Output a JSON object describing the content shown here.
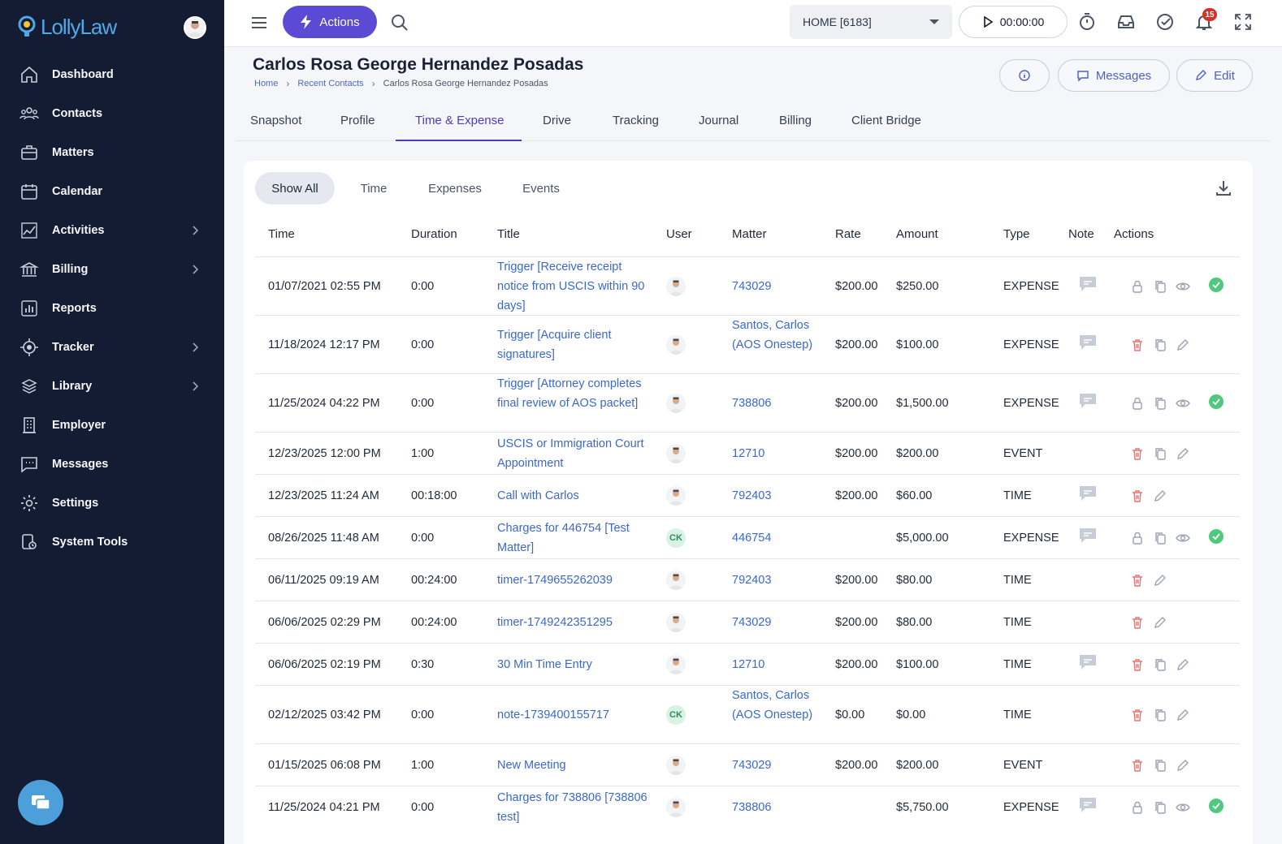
{
  "brand": {
    "name": "LollyLaw"
  },
  "sidebar": {
    "items": [
      {
        "label": "Dashboard",
        "icon": "home-icon",
        "has_submenu": false
      },
      {
        "label": "Contacts",
        "icon": "contacts-icon",
        "has_submenu": false
      },
      {
        "label": "Matters",
        "icon": "briefcase-icon",
        "has_submenu": false
      },
      {
        "label": "Calendar",
        "icon": "calendar-icon",
        "has_submenu": false
      },
      {
        "label": "Activities",
        "icon": "activity-chart-icon",
        "has_submenu": true
      },
      {
        "label": "Billing",
        "icon": "bank-icon",
        "has_submenu": true
      },
      {
        "label": "Reports",
        "icon": "bar-chart-icon",
        "has_submenu": false
      },
      {
        "label": "Tracker",
        "icon": "target-icon",
        "has_submenu": true
      },
      {
        "label": "Library",
        "icon": "library-icon",
        "has_submenu": true
      },
      {
        "label": "Employer",
        "icon": "building-icon",
        "has_submenu": false
      },
      {
        "label": "Messages",
        "icon": "message-icon",
        "has_submenu": false
      },
      {
        "label": "Settings",
        "icon": "gear-icon",
        "has_submenu": false
      },
      {
        "label": "System Tools",
        "icon": "system-tools-icon",
        "has_submenu": false
      }
    ]
  },
  "topbar": {
    "actions_label": "Actions",
    "workspace_select": "HOME [6183]",
    "timer": "00:00:00",
    "notification_count": "15"
  },
  "header": {
    "title": "Carlos Rosa George Hernandez Posadas",
    "breadcrumb": [
      "Home",
      "Recent Contacts",
      "Carlos Rosa George Hernandez Posadas"
    ],
    "messages_label": "Messages",
    "edit_label": "Edit"
  },
  "tabs": [
    "Snapshot",
    "Profile",
    "Time & Expense",
    "Drive",
    "Tracking",
    "Journal",
    "Billing",
    "Client Bridge"
  ],
  "active_tab": "Time & Expense",
  "filters": [
    "Show All",
    "Time",
    "Expenses",
    "Events"
  ],
  "active_filter": "Show All",
  "table": {
    "columns": [
      "Time",
      "Duration",
      "Title",
      "User",
      "Matter",
      "Rate",
      "Amount",
      "Type",
      "Note",
      "Actions"
    ],
    "rows": [
      {
        "time": "01/07/2021 02:55 PM",
        "duration": "0:00",
        "title": "Trigger [Receive receipt notice from USCIS within 90 days]",
        "user": "avatar",
        "matter": "743029",
        "rate": "$200.00",
        "amount": "$250.00",
        "type": "EXPENSE",
        "note": true,
        "actions": [
          "lock",
          "copy",
          "view"
        ],
        "approved": true
      },
      {
        "time": "11/18/2024 12:17 PM",
        "duration": "0:00",
        "title": "Trigger [Acquire client signatures]",
        "user": "avatar",
        "matter": "Santos, Carlos (AOS Onestep)",
        "rate": "$200.00",
        "amount": "$100.00",
        "type": "EXPENSE",
        "note": true,
        "actions": [
          "delete",
          "copy",
          "edit"
        ],
        "approved": false
      },
      {
        "time": "11/25/2024 04:22 PM",
        "duration": "0:00",
        "title": "Trigger [Attorney completes final review of AOS packet]",
        "user": "avatar",
        "matter": "738806",
        "rate": "$200.00",
        "amount": "$1,500.00",
        "type": "EXPENSE",
        "note": true,
        "actions": [
          "lock",
          "copy",
          "view"
        ],
        "approved": true
      },
      {
        "time": "12/23/2025 12:00 PM",
        "duration": "1:00",
        "title": "USCIS or Immigration Court Appointment",
        "user": "avatar",
        "matter": "12710",
        "rate": "$200.00",
        "amount": "$200.00",
        "type": "EVENT",
        "note": false,
        "actions": [
          "delete",
          "copy",
          "edit"
        ],
        "approved": false
      },
      {
        "time": "12/23/2025 11:24 AM",
        "duration": "00:18:00",
        "title": "Call with Carlos",
        "user": "avatar",
        "matter": "792403",
        "rate": "$200.00",
        "amount": "$60.00",
        "type": "TIME",
        "note": true,
        "actions": [
          "delete",
          "edit"
        ],
        "approved": false
      },
      {
        "time": "08/26/2025 11:48 AM",
        "duration": "0:00",
        "title": "Charges for 446754 [Test Matter]",
        "user": "CK",
        "matter": "446754",
        "rate": "",
        "amount": "$5,000.00",
        "type": "EXPENSE",
        "note": true,
        "actions": [
          "lock",
          "copy",
          "view"
        ],
        "approved": true
      },
      {
        "time": "06/11/2025 09:19 AM",
        "duration": "00:24:00",
        "title": "timer-1749655262039",
        "user": "avatar",
        "matter": "792403",
        "rate": "$200.00",
        "amount": "$80.00",
        "type": "TIME",
        "note": false,
        "actions": [
          "delete",
          "edit"
        ],
        "approved": false
      },
      {
        "time": "06/06/2025 02:29 PM",
        "duration": "00:24:00",
        "title": "timer-1749242351295",
        "user": "avatar",
        "matter": "743029",
        "rate": "$200.00",
        "amount": "$80.00",
        "type": "TIME",
        "note": false,
        "actions": [
          "delete",
          "edit"
        ],
        "approved": false
      },
      {
        "time": "06/06/2025 02:19 PM",
        "duration": "0:30",
        "title": "30 Min Time Entry",
        "user": "avatar",
        "matter": "12710",
        "rate": "$200.00",
        "amount": "$100.00",
        "type": "TIME",
        "note": true,
        "actions": [
          "delete",
          "copy",
          "edit"
        ],
        "approved": false
      },
      {
        "time": "02/12/2025 03:42 PM",
        "duration": "0:00",
        "title": "note-1739400155717",
        "user": "CK",
        "matter": "Santos, Carlos (AOS Onestep)",
        "rate": "$0.00",
        "amount": "$0.00",
        "type": "TIME",
        "note": false,
        "actions": [
          "delete",
          "copy",
          "edit"
        ],
        "approved": false
      },
      {
        "time": "01/15/2025 06:08 PM",
        "duration": "1:00",
        "title": "New Meeting",
        "user": "avatar",
        "matter": "743029",
        "rate": "$200.00",
        "amount": "$200.00",
        "type": "EVENT",
        "note": false,
        "actions": [
          "delete",
          "copy",
          "edit"
        ],
        "approved": false
      },
      {
        "time": "11/25/2024 04:21 PM",
        "duration": "0:00",
        "title": "Charges for 738806 [738806 test]",
        "user": "avatar",
        "matter": "738806",
        "rate": "",
        "amount": "$5,750.00",
        "type": "EXPENSE",
        "note": true,
        "actions": [
          "lock",
          "copy",
          "view"
        ],
        "approved": true
      }
    ]
  },
  "colors": {
    "sidebar_bg": "#141c33",
    "accent": "#5b4ad3",
    "link": "#3b68c9",
    "delete": "#e57373",
    "approved": "#4fc97e"
  }
}
